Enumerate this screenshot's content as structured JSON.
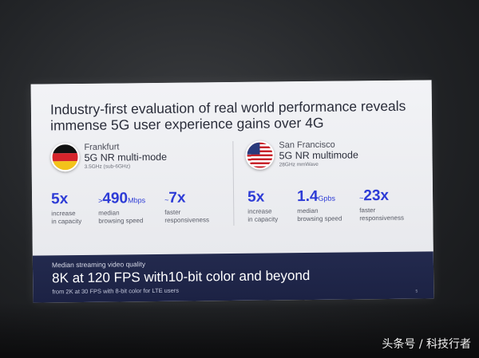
{
  "slide": {
    "title_line1": "Industry-first evaluation of real world performance reveals",
    "title_line2": "immense 5G user experience gains over 4G",
    "left": {
      "city": "Frankfurt",
      "mode": "5G NR multi-mode",
      "band": "3.5GHz (sub-6GHz)",
      "stats": [
        {
          "prefix": "",
          "value": "5x",
          "unit": "",
          "label1": "increase",
          "label2": "in capacity"
        },
        {
          "prefix": ">",
          "value": "490",
          "unit": "Mbps",
          "label1": "median",
          "label2": "browsing speed"
        },
        {
          "prefix": "~",
          "value": "7x",
          "unit": "",
          "label1": "faster",
          "label2": "responsiveness"
        }
      ]
    },
    "right": {
      "city": "San Francisco",
      "mode": "5G NR multimode",
      "band": "28GHz mmWave",
      "stats": [
        {
          "prefix": "",
          "value": "5x",
          "unit": "",
          "label1": "increase",
          "label2": "in capacity"
        },
        {
          "prefix": "",
          "value": "1.4",
          "unit": "Gpbs",
          "label1": "median",
          "label2": "browsing speed"
        },
        {
          "prefix": "~",
          "value": "23x",
          "unit": "",
          "label1": "faster",
          "label2": "responsiveness"
        }
      ]
    },
    "streaming": {
      "title": "Median streaming video quality",
      "main": "8K at 120 FPS with10-bit color and beyond",
      "sub": "from 2K at 30 FPS with 8-bit color for LTE users"
    },
    "page_number": "5"
  },
  "watermark": "头条号 / 科技行者",
  "colors": {
    "accent": "#2d3bd6",
    "slide_bottom": "#232a4e"
  }
}
